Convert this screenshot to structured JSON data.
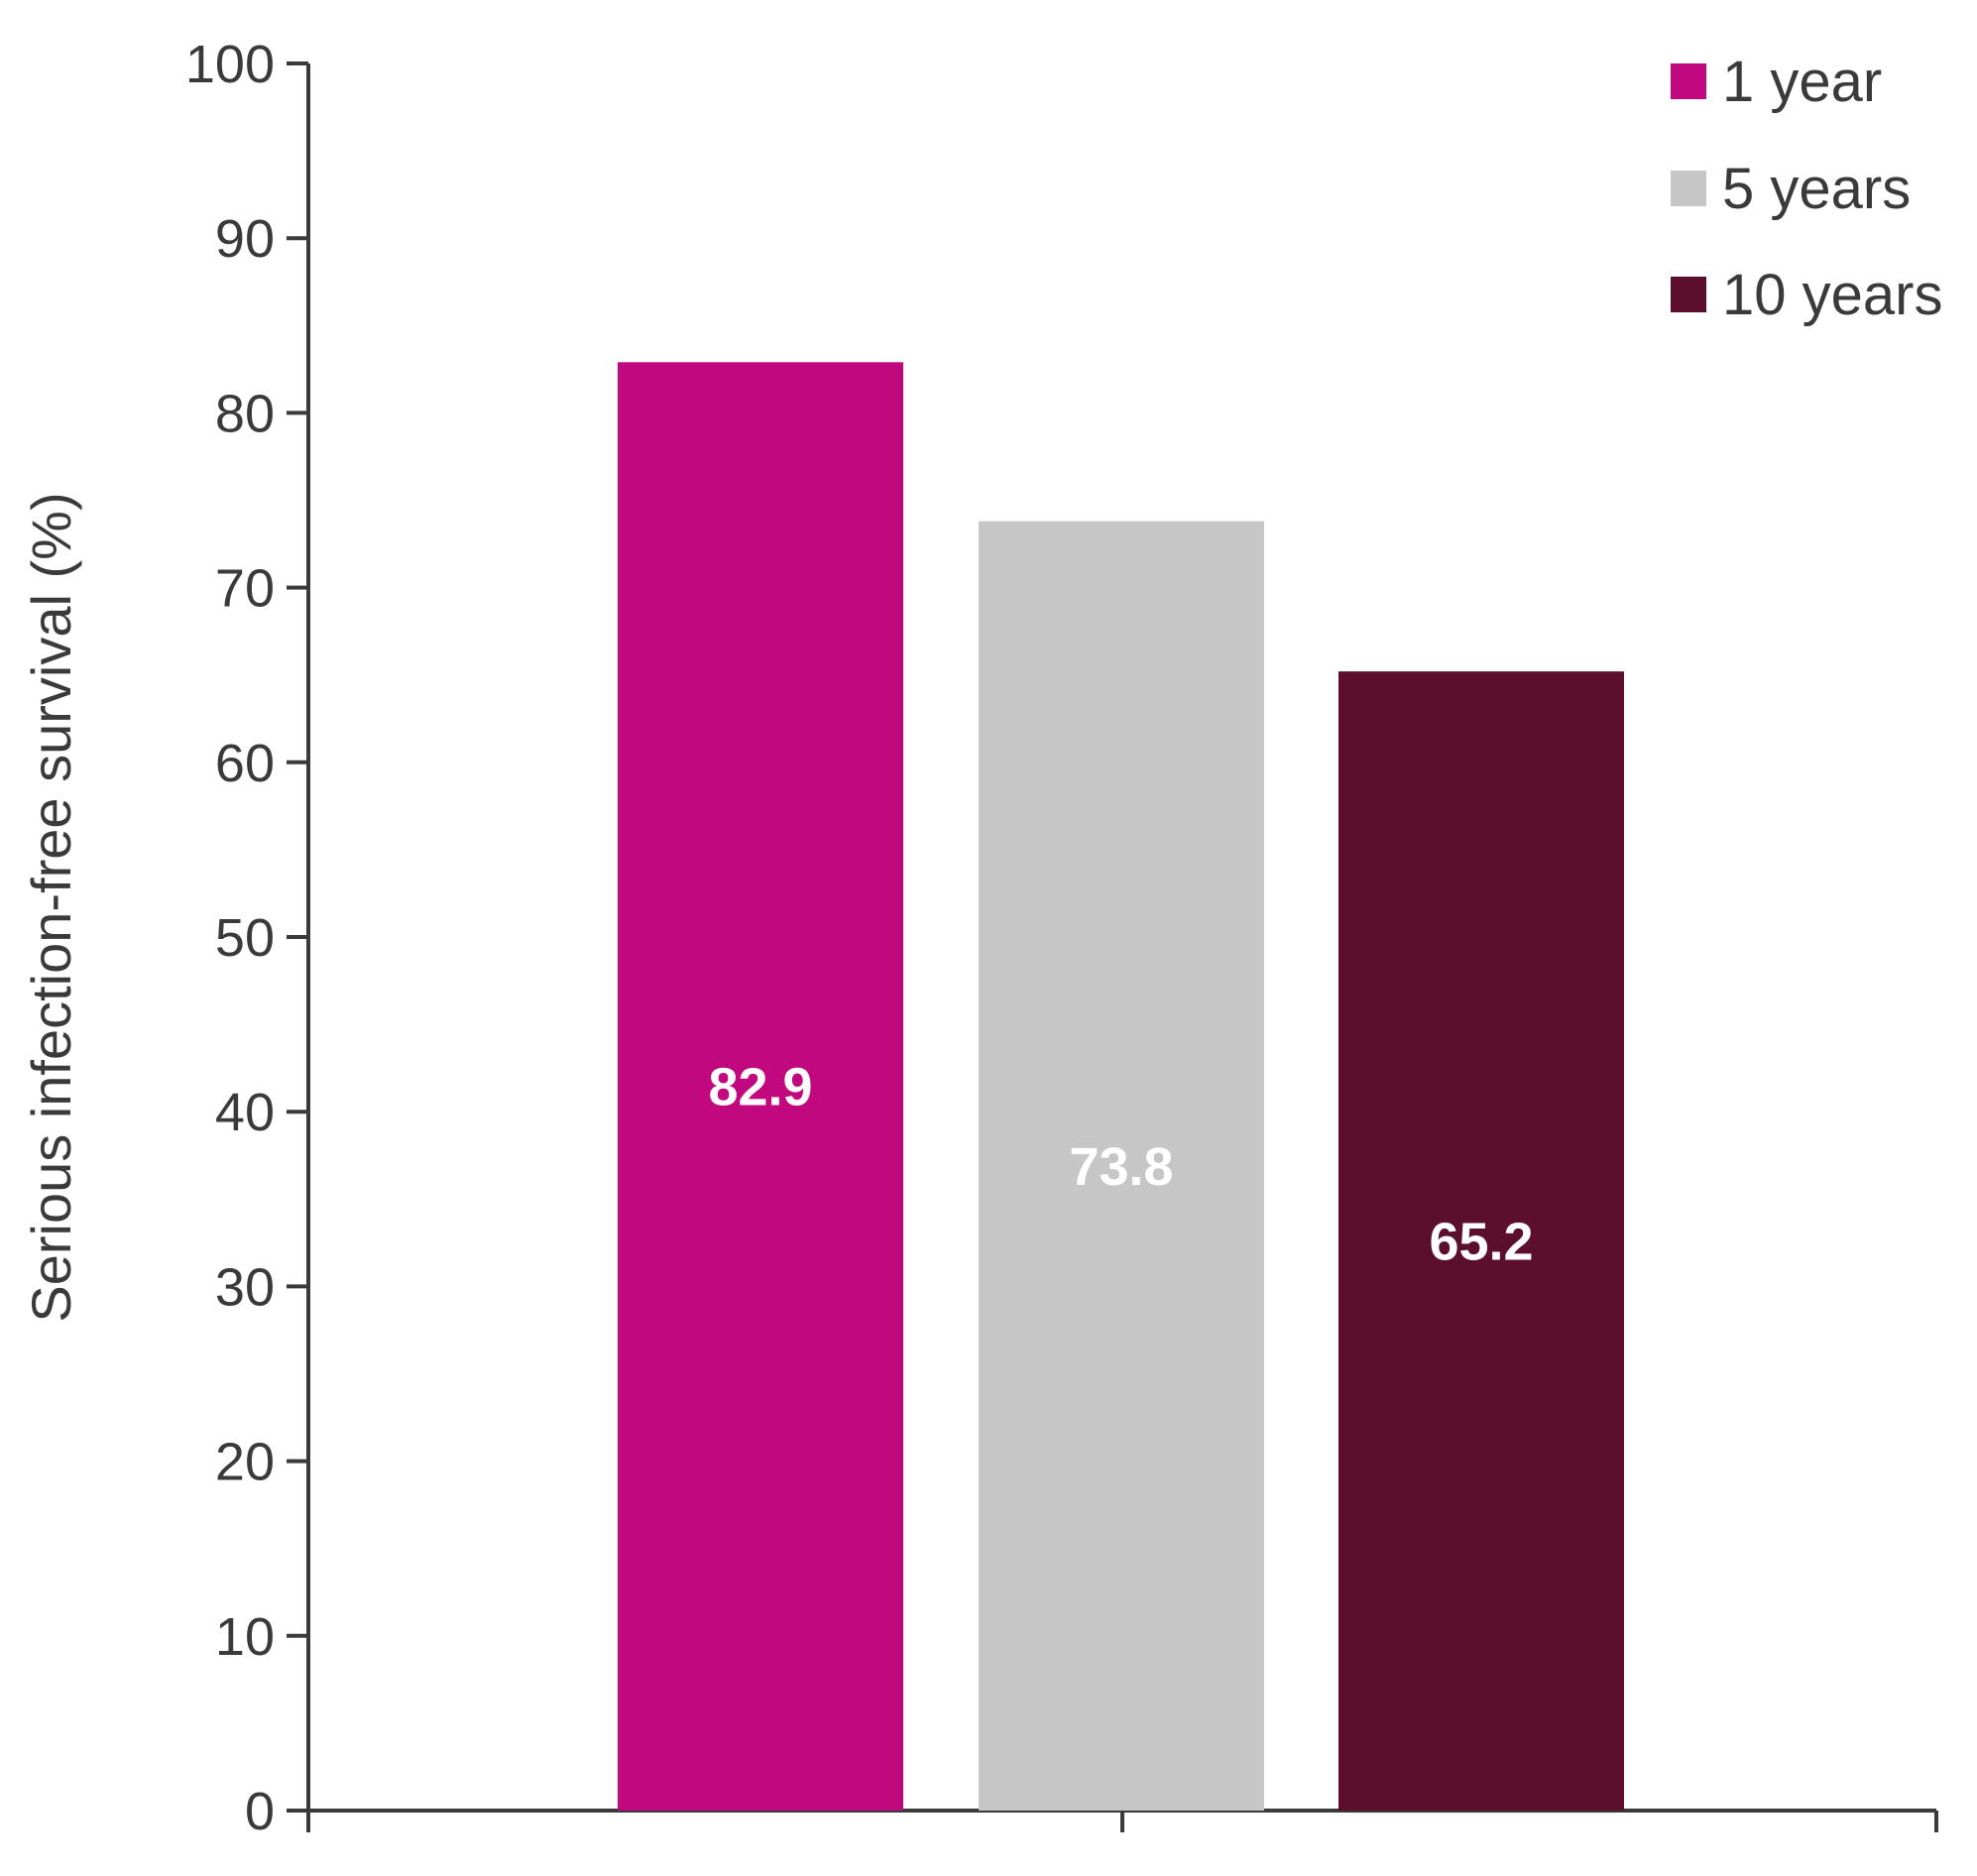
{
  "chart_data": {
    "type": "bar",
    "categories": [
      ""
    ],
    "series": [
      {
        "name": "1 year",
        "values": [
          82.9
        ],
        "color": "#c2087e",
        "label": "82.9"
      },
      {
        "name": "5 years",
        "values": [
          73.8
        ],
        "color": "#c6c6c6",
        "label": "73.8"
      },
      {
        "name": "10 years",
        "values": [
          65.2
        ],
        "color": "#5c0f2b",
        "label": "65.2"
      }
    ],
    "title": "",
    "xlabel": "",
    "ylabel": "Serious infection-free survival (%)",
    "ylim": [
      0,
      100
    ],
    "yticks": [
      0,
      10,
      20,
      30,
      40,
      50,
      60,
      70,
      80,
      90,
      100
    ],
    "ytick_labels": [
      "0",
      "10",
      "20",
      "30",
      "40",
      "50",
      "60",
      "70",
      "80",
      "90",
      "100"
    ],
    "grid": false,
    "legend_position": "top-right",
    "axis_color": "#3a3a3a",
    "label_color": "#ffffff"
  }
}
